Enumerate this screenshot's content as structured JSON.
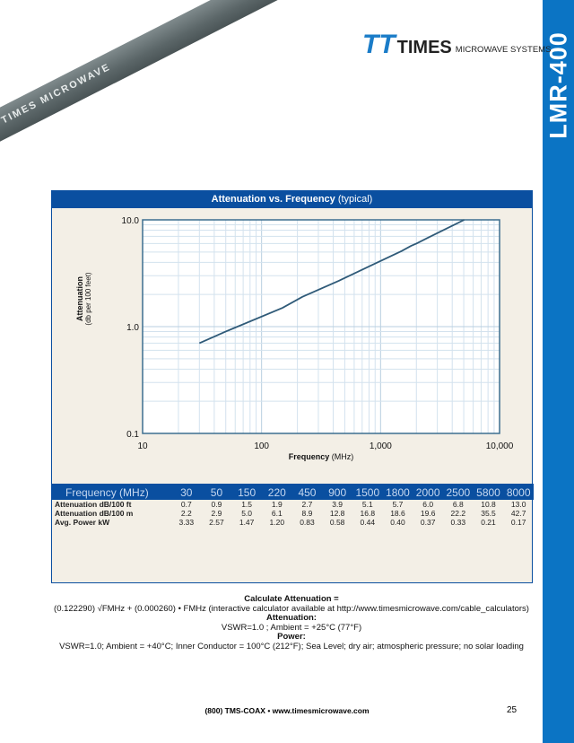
{
  "side_tab": "LMR-400",
  "cable_print": "TIMES MICROWAVE",
  "logo": {
    "name": "TIMES",
    "sub": "MICROWAVE SYSTEMS"
  },
  "panel": {
    "title_bold": "Attenuation vs. Frequency",
    "title_rest": " (typical)"
  },
  "chart_data": {
    "type": "line",
    "title": "Attenuation vs. Frequency (typical)",
    "xlabel": "Frequency",
    "xunit": " (MHz)",
    "ylabel": "Attenuation",
    "yunit": "(db per 100 feet)",
    "xscale": "log",
    "yscale": "log",
    "xlim": [
      10,
      10000
    ],
    "ylim": [
      0.1,
      10
    ],
    "xticks": [
      "10",
      "100",
      "1,000",
      "10,000"
    ],
    "yticks": [
      "10.0",
      "1.0",
      "0.1"
    ],
    "grid": true,
    "x": [
      30,
      50,
      150,
      220,
      450,
      900,
      1500,
      1800,
      2000,
      2500,
      5800
    ],
    "y": [
      0.7,
      0.9,
      1.5,
      1.9,
      2.7,
      3.9,
      5.1,
      5.7,
      6.0,
      6.8,
      10.8
    ],
    "line_color": "#2f5a78"
  },
  "table": {
    "header_label": "Frequency (MHz)",
    "frequencies": [
      "30",
      "50",
      "150",
      "220",
      "450",
      "900",
      "1500",
      "1800",
      "2000",
      "2500",
      "5800",
      "8000"
    ],
    "rows": [
      {
        "label": "Attenuation dB/100 ft",
        "values": [
          "0.7",
          "0.9",
          "1.5",
          "1.9",
          "2.7",
          "3.9",
          "5.1",
          "5.7",
          "6.0",
          "6.8",
          "10.8",
          "13.0"
        ]
      },
      {
        "label": "Attenuation dB/100 m",
        "values": [
          "2.2",
          "2.9",
          "5.0",
          "6.1",
          "8.9",
          "12.8",
          "16.8",
          "18.6",
          "19.6",
          "22.2",
          "35.5",
          "42.7"
        ]
      },
      {
        "label": "Avg. Power kW",
        "values": [
          "3.33",
          "2.57",
          "1.47",
          "1.20",
          "0.83",
          "0.58",
          "0.44",
          "0.40",
          "0.37",
          "0.33",
          "0.21",
          "0.17"
        ]
      }
    ]
  },
  "notes": {
    "calc_title": "Calculate Attenuation =",
    "formula": "(0.122290) √FMHz  +  (0.000260) • FMHz (interactive calculator available at http://www.timesmicrowave.com/cable_calculators)",
    "att_title": "Attenuation:",
    "att_text": "VSWR=1.0 ; Ambient = +25°C (77°F)",
    "power_title": "Power:",
    "power_text": "VSWR=1.0; Ambient = +40°C; Inner Conductor = 100°C (212°F); Sea Level; dry air; atmospheric pressure; no solar loading"
  },
  "footer": {
    "text": "(800) TMS-COAX  •  www.timesmicrowave.com",
    "page": "25"
  },
  "colors": {
    "brand_blue": "#0a4fa0",
    "tab_blue": "#0b74c4",
    "panel_bg": "#f3efe6"
  }
}
